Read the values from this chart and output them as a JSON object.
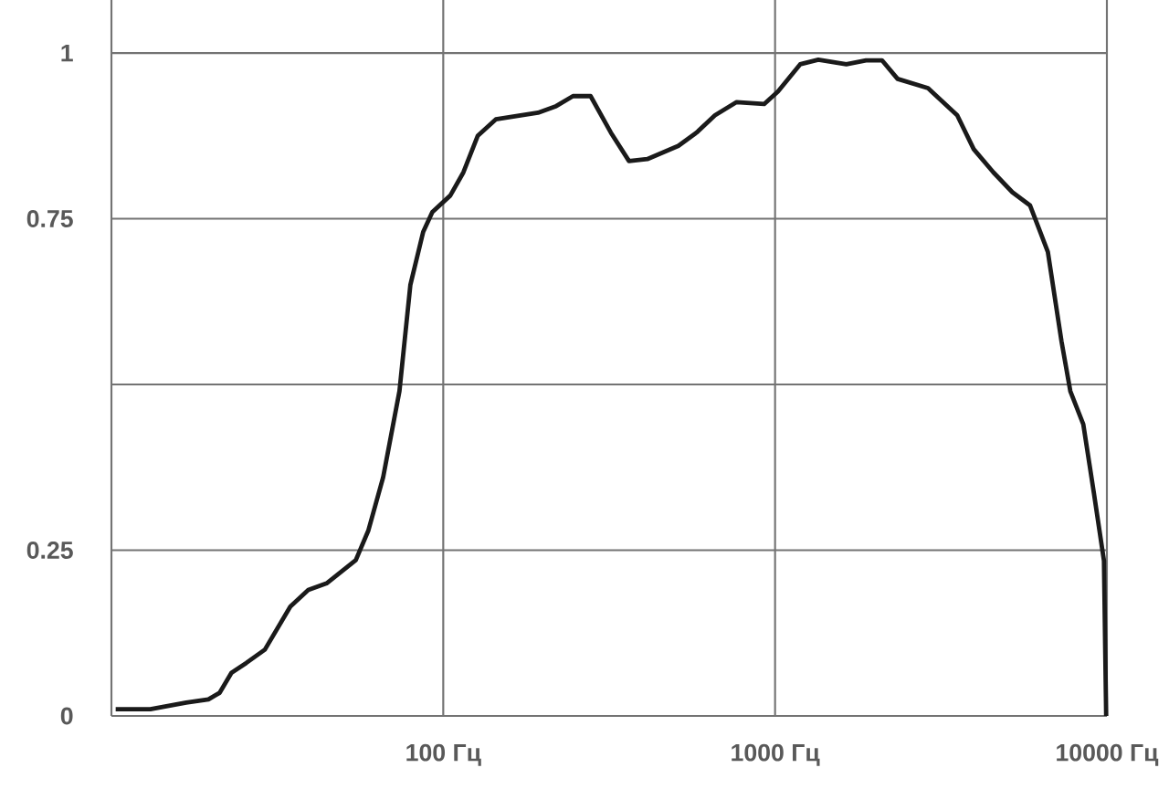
{
  "chart_data": {
    "type": "line",
    "x": [
      10.3,
      13.1,
      16.8,
      19.6,
      21.2,
      23.0,
      25.5,
      29.0,
      34.6,
      39.2,
      44.5,
      54.5,
      59.5,
      65.9,
      73.8,
      79.6,
      87,
      92.7,
      105,
      115,
      127,
      144,
      193,
      219,
      246,
      278,
      320,
      363,
      412,
      511,
      580,
      659,
      766,
      927,
      1020,
      1190,
      1350,
      1640,
      1880,
      2100,
      2340,
      2890,
      3540,
      3970,
      4550,
      5190,
      5870,
      6640,
      7300,
      7760,
      8490,
      9140,
      9800,
      9950
    ],
    "values": [
      0.01,
      0.01,
      0.02,
      0.025,
      0.035,
      0.065,
      0.08,
      0.1,
      0.165,
      0.19,
      0.2,
      0.235,
      0.28,
      0.36,
      0.49,
      0.65,
      0.73,
      0.76,
      0.785,
      0.82,
      0.875,
      0.9,
      0.91,
      0.92,
      0.935,
      0.935,
      0.88,
      0.837,
      0.84,
      0.86,
      0.88,
      0.906,
      0.926,
      0.923,
      0.942,
      0.983,
      0.99,
      0.983,
      0.989,
      0.989,
      0.961,
      0.947,
      0.906,
      0.855,
      0.82,
      0.79,
      0.77,
      0.7,
      0.565,
      0.49,
      0.44,
      0.336,
      0.234,
      0.0
    ],
    "color": "#1a1a1a",
    "xlim": [
      10,
      10000
    ],
    "ylim": [
      0,
      1.08
    ],
    "log": "x",
    "grid": true,
    "xticks": [
      {
        "value": 100,
        "label": "100 Гц"
      },
      {
        "value": 1000,
        "label": "1000 Гц"
      },
      {
        "value": 10000,
        "label": "10000 Гц"
      }
    ],
    "yticks": [
      0,
      0.25,
      {
        "value": 0.5,
        "label": null
      },
      0.75,
      1
    ]
  }
}
